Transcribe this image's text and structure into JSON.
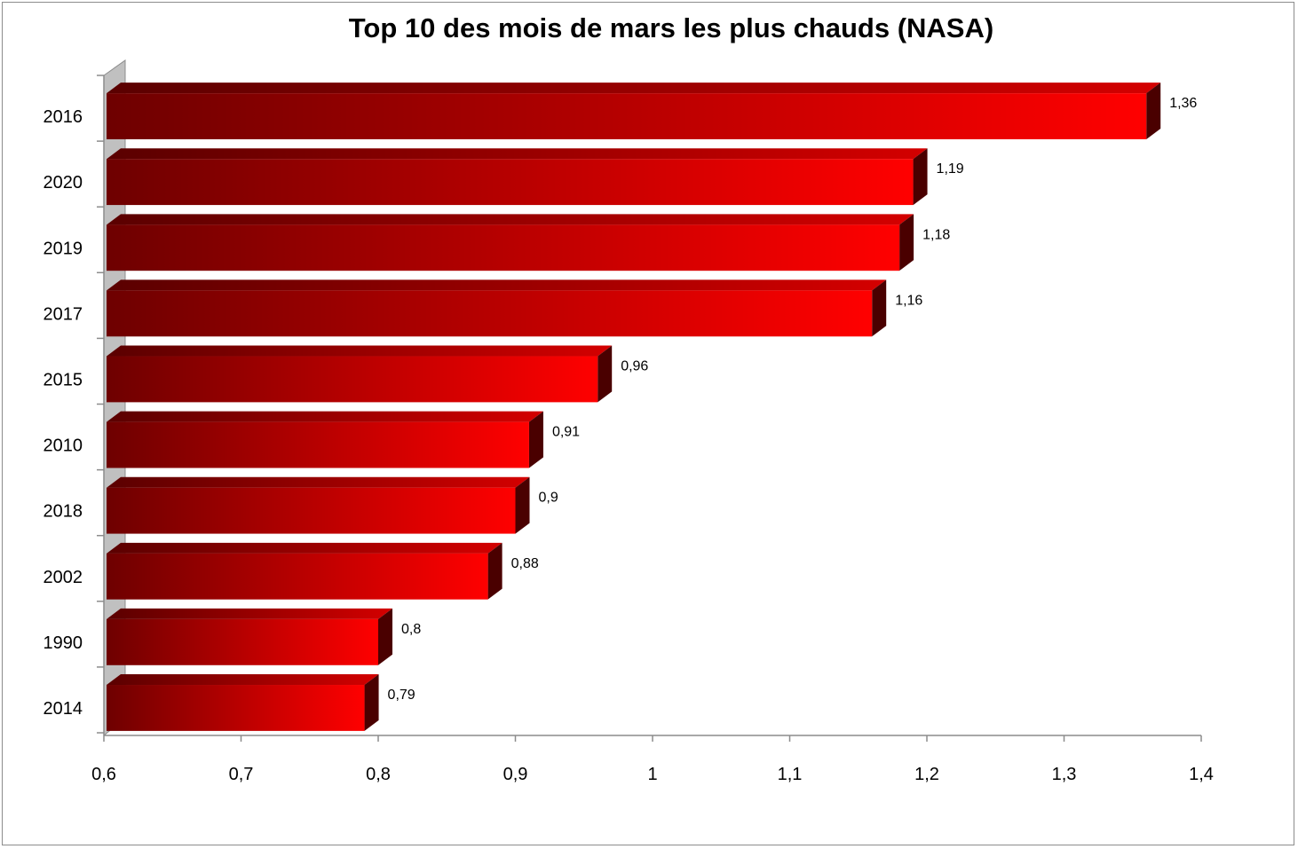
{
  "chart_data": {
    "type": "bar",
    "orientation": "horizontal",
    "title": "Top 10 des mois de mars les plus chauds (NASA)",
    "xlabel": "",
    "ylabel": "",
    "categories": [
      "2016",
      "2020",
      "2019",
      "2017",
      "2015",
      "2010",
      "2018",
      "2002",
      "1990",
      "2014"
    ],
    "values": [
      1.36,
      1.19,
      1.18,
      1.16,
      0.96,
      0.91,
      0.9,
      0.88,
      0.8,
      0.79
    ],
    "data_labels": [
      "1,36",
      "1,19",
      "1,18",
      "1,16",
      "0,96",
      "0,91",
      "0,9",
      "0,88",
      "0,8",
      "0,79"
    ],
    "xlim": [
      0.6,
      1.4
    ],
    "xticks": [
      0.6,
      0.7,
      0.8,
      0.9,
      1.0,
      1.1,
      1.2,
      1.3,
      1.4
    ],
    "xtick_labels": [
      "0,6",
      "0,7",
      "0,8",
      "0,9",
      "1",
      "1,1",
      "1,2",
      "1,3",
      "1,4"
    ],
    "grid": false,
    "legend": "none",
    "style": "3d-bars",
    "colors": {
      "bar_dark": "#6e0000",
      "bar_light": "#ff0000",
      "bar_top_dark": "#5a0000",
      "bar_top_light": "#d40000",
      "bar_side": "#4a0000",
      "wall": "#c0c0c0",
      "axis": "#8c8c8c"
    }
  }
}
